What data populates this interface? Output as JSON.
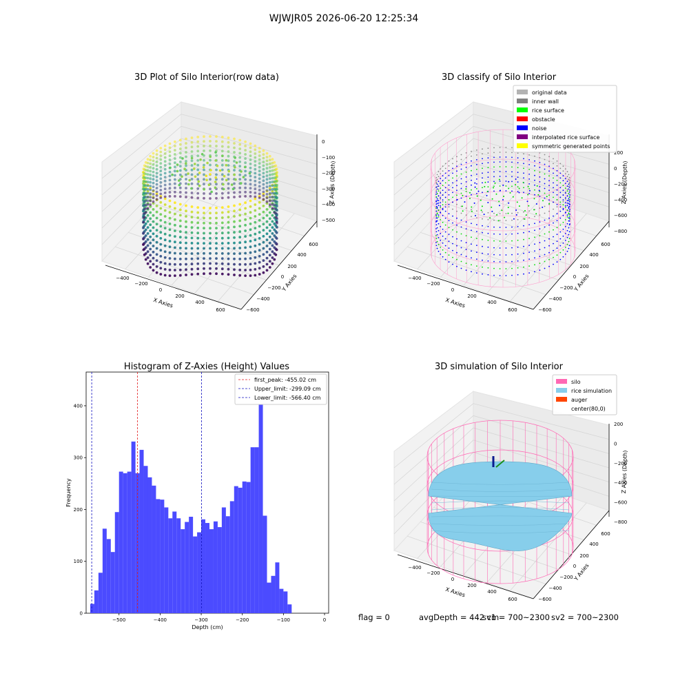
{
  "suptitle": "WJWJR05 2026-06-20 12:25:34",
  "status": {
    "flag": "flag = 0",
    "avg_depth": "avgDepth = 442 cm",
    "sv1": "sv1 = 700~2300",
    "sv2": "sv2 = 700~2300"
  },
  "chart_data": [
    {
      "type": "scatter",
      "projection": "3d",
      "title": "3D Plot of Silo Interior(row data)",
      "xlabel": "X Axies",
      "ylabel": "Y Axies",
      "zlabel": "Z Axies (Depth)",
      "x_ticks": [
        -400,
        -200,
        0,
        200,
        400,
        600
      ],
      "y_ticks": [
        -600,
        -400,
        -200,
        0,
        200,
        400,
        600
      ],
      "z_ticks": [
        -500,
        -400,
        -300,
        -200,
        -100,
        0
      ],
      "colormap": "viridis"
    },
    {
      "type": "scatter",
      "projection": "3d",
      "title": "3D classify of Silo Interior",
      "xlabel": "X Axies",
      "ylabel": "Y Axies",
      "zlabel": "Z Axies (Depth)",
      "x_ticks": [
        -400,
        -200,
        0,
        200,
        400,
        600
      ],
      "y_ticks": [
        -600,
        -400,
        -200,
        0,
        200,
        400,
        600
      ],
      "z_ticks": [
        -800,
        -600,
        -400,
        -200,
        0,
        200
      ],
      "legend": [
        {
          "label": "original data",
          "color": "#b3b3b3"
        },
        {
          "label": "inner wall",
          "color": "#808080"
        },
        {
          "label": "rice surface",
          "color": "#00ff00"
        },
        {
          "label": "obstacle",
          "color": "#ff0000"
        },
        {
          "label": "noise",
          "color": "#0000ff"
        },
        {
          "label": "interpolated rice surface",
          "color": "#800080"
        },
        {
          "label": "symmetric generated points",
          "color": "#ffff00"
        }
      ],
      "legend_position": "upper right"
    },
    {
      "type": "bar",
      "title": "Histogram of Z-Axies (Height) Values",
      "xlabel": "Depth (cm)",
      "ylabel": "Frequency",
      "xlim": [
        -580,
        10
      ],
      "ylim": [
        0,
        465
      ],
      "x_ticks": [
        -500,
        -400,
        -300,
        -200,
        -100,
        0
      ],
      "y_ticks": [
        0,
        100,
        200,
        300,
        400
      ],
      "bin_start": -570,
      "bin_width": 10,
      "values": [
        18,
        44,
        78,
        163,
        143,
        118,
        195,
        273,
        270,
        273,
        331,
        270,
        315,
        284,
        262,
        246,
        220,
        219,
        204,
        183,
        196,
        183,
        162,
        176,
        186,
        148,
        156,
        181,
        174,
        162,
        177,
        166,
        204,
        187,
        216,
        245,
        242,
        254,
        253,
        320,
        320,
        445,
        188,
        59,
        72,
        98,
        47,
        42,
        17
      ],
      "bar_color": "#4b4bff",
      "vlines": [
        {
          "label": "first_peak: -455.02 cm",
          "x": -455.02,
          "color": "#e31a1c"
        },
        {
          "label": "Upper_limit: -299.09 cm",
          "x": -299.09,
          "color": "#1010c0"
        },
        {
          "label": "Lower_limit: -566.40 cm",
          "x": -566.4,
          "color": "#1010c0"
        }
      ],
      "legend_position": "upper right"
    },
    {
      "type": "surface",
      "projection": "3d",
      "title": "3D simulation of Silo Interior",
      "xlabel": "X Axies",
      "ylabel": "Y Axies",
      "zlabel": "Z Axies (Depth)",
      "x_ticks": [
        -400,
        -200,
        0,
        200,
        400,
        600
      ],
      "y_ticks": [
        -600,
        -400,
        -200,
        0,
        200,
        400,
        600
      ],
      "z_ticks": [
        -800,
        -600,
        -400,
        -200,
        0,
        200
      ],
      "legend": [
        {
          "label": "silo",
          "color": "#ff69b4"
        },
        {
          "label": "rice simulation",
          "color": "#87ceeb"
        },
        {
          "label": "auger",
          "color": "#ff4500"
        },
        {
          "label": "center(80,0)",
          "color": ""
        }
      ],
      "legend_position": "upper right"
    }
  ]
}
